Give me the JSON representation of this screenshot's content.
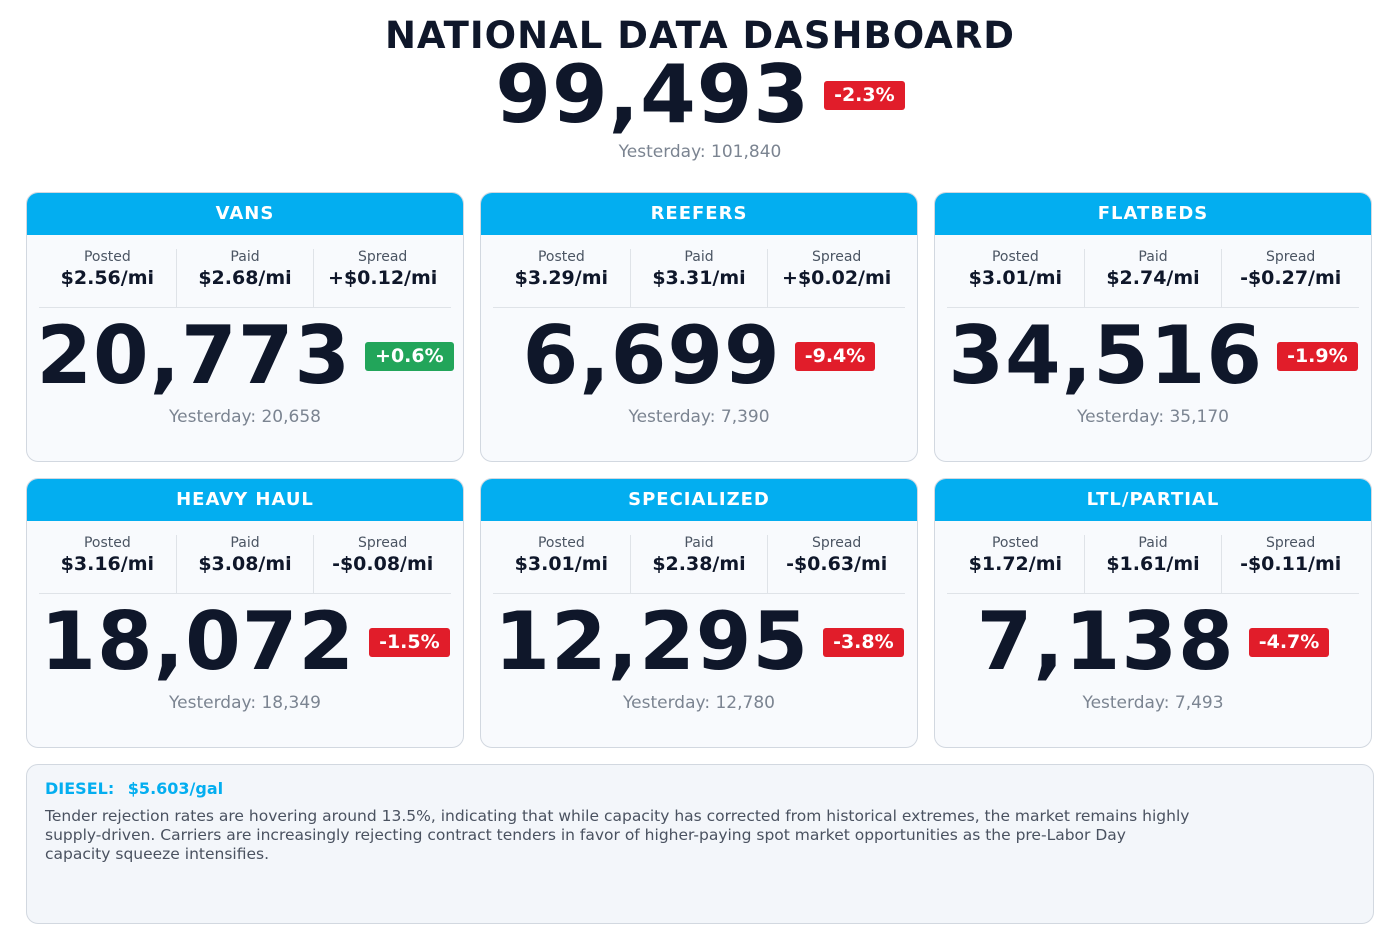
{
  "header": {
    "title": "NATIONAL DATA DASHBOARD",
    "total": "99,493",
    "change": "-2.3%",
    "change_dir": "neg",
    "yesterday": "Yesterday: 101,840"
  },
  "labels": {
    "posted": "Posted",
    "paid": "Paid",
    "spread": "Spread"
  },
  "cards": [
    {
      "name": "VANS",
      "posted": "$2.56/mi",
      "paid": "$2.68/mi",
      "spread": "+$0.12/mi",
      "value": "20,773",
      "change": "+0.6%",
      "change_dir": "pos",
      "yesterday": "Yesterday: 20,658"
    },
    {
      "name": "REEFERS",
      "posted": "$3.29/mi",
      "paid": "$3.31/mi",
      "spread": "+$0.02/mi",
      "value": "6,699",
      "change": "-9.4%",
      "change_dir": "neg",
      "yesterday": "Yesterday: 7,390"
    },
    {
      "name": "FLATBEDS",
      "posted": "$3.01/mi",
      "paid": "$2.74/mi",
      "spread": "-$0.27/mi",
      "value": "34,516",
      "change": "-1.9%",
      "change_dir": "neg",
      "yesterday": "Yesterday: 35,170"
    },
    {
      "name": "HEAVY HAUL",
      "posted": "$3.16/mi",
      "paid": "$3.08/mi",
      "spread": "-$0.08/mi",
      "value": "18,072",
      "change": "-1.5%",
      "change_dir": "neg",
      "yesterday": "Yesterday: 18,349"
    },
    {
      "name": "SPECIALIZED",
      "posted": "$3.01/mi",
      "paid": "$2.38/mi",
      "spread": "-$0.63/mi",
      "value": "12,295",
      "change": "-3.8%",
      "change_dir": "neg",
      "yesterday": "Yesterday: 12,780"
    },
    {
      "name": "LTL/PARTIAL",
      "posted": "$1.72/mi",
      "paid": "$1.61/mi",
      "spread": "-$0.11/mi",
      "value": "7,138",
      "change": "-4.7%",
      "change_dir": "neg",
      "yesterday": "Yesterday: 7,493"
    }
  ],
  "notes": {
    "diesel_label": "DIESEL:",
    "diesel_value": "$5.603/gal",
    "text": "Tender rejection rates are hovering around 13.5%, indicating that while capacity has corrected from historical extremes, the market remains highly supply-driven. Carriers are increasingly rejecting contract tenders in favor of higher-paying spot market opportunities as the pre-Labor Day capacity squeeze intensifies."
  },
  "colors": {
    "accent": "#03aef0",
    "negative": "#e11d2a",
    "positive": "#22a55a",
    "text": "#0f172a",
    "muted": "#7b8491"
  }
}
